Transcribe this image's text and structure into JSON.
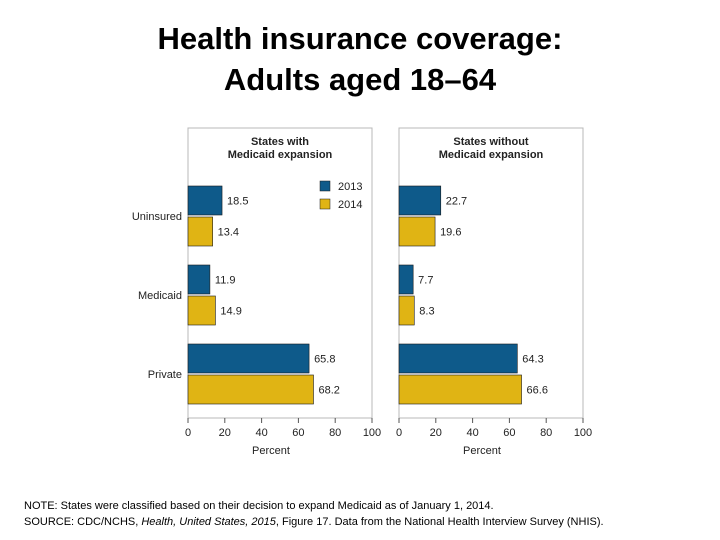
{
  "slide": {
    "title_line1": "Health insurance coverage:",
    "title_line2": "Adults aged 18–64"
  },
  "chart_data": {
    "type": "bar",
    "orientation": "horizontal",
    "categories": [
      "Uninsured",
      "Medicaid",
      "Private"
    ],
    "xlim": [
      0,
      100
    ],
    "xticks": [
      0,
      20,
      40,
      60,
      80,
      100
    ],
    "xlabel": "Percent",
    "legend": {
      "placement": "top-right of left panel"
    },
    "panels": [
      {
        "title_line1": "States with",
        "title_line2": "Medicaid expansion",
        "series": [
          {
            "name": "2013",
            "color": "#0e5a8a",
            "values": [
              18.5,
              11.9,
              65.8
            ]
          },
          {
            "name": "2014",
            "color": "#e0b414",
            "values": [
              13.4,
              14.9,
              68.2
            ]
          }
        ]
      },
      {
        "title_line1": "States without",
        "title_line2": "Medicaid expansion",
        "series": [
          {
            "name": "2013",
            "color": "#0e5a8a",
            "values": [
              22.7,
              7.7,
              64.3
            ]
          },
          {
            "name": "2014",
            "color": "#e0b414",
            "values": [
              19.6,
              8.3,
              66.6
            ]
          }
        ]
      }
    ]
  },
  "footer": {
    "note": "NOTE: States were classified based on their decision to expand Medicaid as of January 1, 2014.",
    "source_prefix": "SOURCE: CDC/NCHS, ",
    "source_italic1": "Health, United States, 2015",
    "source_middle": ", Figure 17. Data from the National Health Interview Survey (NHIS)."
  }
}
